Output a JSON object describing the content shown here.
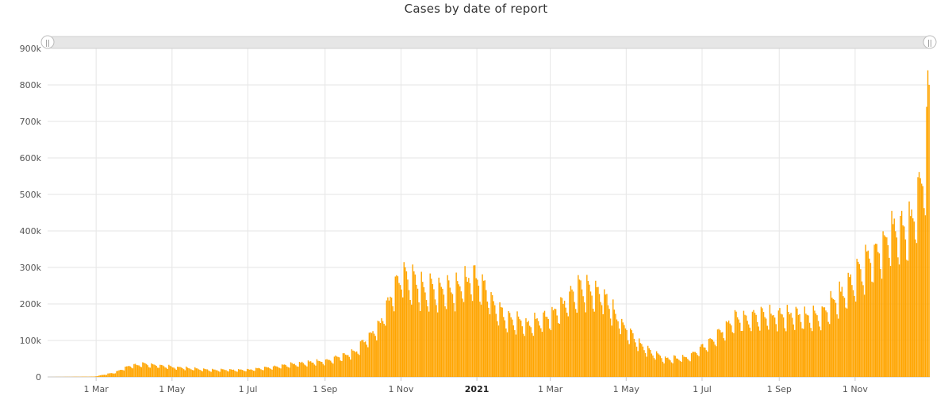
{
  "chart_data": {
    "type": "bar",
    "title": "Cases by date of report",
    "xlabel": "",
    "ylabel": "",
    "ylim": [
      0,
      900000
    ],
    "y_ticks": [
      {
        "value": 0,
        "label": "0"
      },
      {
        "value": 100000,
        "label": "100k"
      },
      {
        "value": 200000,
        "label": "200k"
      },
      {
        "value": 300000,
        "label": "300k"
      },
      {
        "value": 400000,
        "label": "400k"
      },
      {
        "value": 500000,
        "label": "500k"
      },
      {
        "value": 600000,
        "label": "600k"
      },
      {
        "value": 700000,
        "label": "700k"
      },
      {
        "value": 800000,
        "label": "800k"
      },
      {
        "value": 900000,
        "label": "900k"
      }
    ],
    "x_ticks": [
      {
        "date": "2020-03-01",
        "label": "1 Mar",
        "bold": false
      },
      {
        "date": "2020-05-01",
        "label": "1 May",
        "bold": false
      },
      {
        "date": "2020-07-01",
        "label": "1 Jul",
        "bold": false
      },
      {
        "date": "2020-09-01",
        "label": "1 Sep",
        "bold": false
      },
      {
        "date": "2020-11-01",
        "label": "1 Nov",
        "bold": false
      },
      {
        "date": "2021-01-01",
        "label": "2021",
        "bold": true
      },
      {
        "date": "2021-03-01",
        "label": "1 Mar",
        "bold": false
      },
      {
        "date": "2021-05-01",
        "label": "1 May",
        "bold": false
      },
      {
        "date": "2021-07-01",
        "label": "1 Jul",
        "bold": false
      },
      {
        "date": "2021-09-01",
        "label": "1 Sep",
        "bold": false
      },
      {
        "date": "2021-11-01",
        "label": "1 Nov",
        "bold": false
      }
    ],
    "x_range": [
      "2020-01-22",
      "2021-12-30"
    ],
    "series_color": "#FFA500",
    "grid": true,
    "series": [
      {
        "name": "Cases",
        "description": "Daily reported cases, approximated as a 7-day-periodic trend read off the chart",
        "trend_points": [
          {
            "date": "2020-01-22",
            "value": 0
          },
          {
            "date": "2020-02-28",
            "value": 1000
          },
          {
            "date": "2020-03-15",
            "value": 12000
          },
          {
            "date": "2020-03-28",
            "value": 32000
          },
          {
            "date": "2020-04-10",
            "value": 36000
          },
          {
            "date": "2020-05-01",
            "value": 28000
          },
          {
            "date": "2020-06-01",
            "value": 20000
          },
          {
            "date": "2020-07-01",
            "value": 20000
          },
          {
            "date": "2020-07-20",
            "value": 27000
          },
          {
            "date": "2020-08-10",
            "value": 38000
          },
          {
            "date": "2020-09-01",
            "value": 45000
          },
          {
            "date": "2020-09-25",
            "value": 72000
          },
          {
            "date": "2020-10-15",
            "value": 150000
          },
          {
            "date": "2020-10-25",
            "value": 240000
          },
          {
            "date": "2020-11-01",
            "value": 290000
          },
          {
            "date": "2020-11-20",
            "value": 245000
          },
          {
            "date": "2020-12-10",
            "value": 250000
          },
          {
            "date": "2021-01-01",
            "value": 280000
          },
          {
            "date": "2021-01-20",
            "value": 180000
          },
          {
            "date": "2021-02-10",
            "value": 145000
          },
          {
            "date": "2021-03-01",
            "value": 175000
          },
          {
            "date": "2021-03-25",
            "value": 250000
          },
          {
            "date": "2021-04-10",
            "value": 240000
          },
          {
            "date": "2021-04-25",
            "value": 160000
          },
          {
            "date": "2021-05-15",
            "value": 80000
          },
          {
            "date": "2021-06-01",
            "value": 50000
          },
          {
            "date": "2021-06-20",
            "value": 55000
          },
          {
            "date": "2021-07-05",
            "value": 95000
          },
          {
            "date": "2021-07-25",
            "value": 160000
          },
          {
            "date": "2021-08-15",
            "value": 170000
          },
          {
            "date": "2021-09-10",
            "value": 175000
          },
          {
            "date": "2021-10-01",
            "value": 170000
          },
          {
            "date": "2021-10-20",
            "value": 230000
          },
          {
            "date": "2021-11-10",
            "value": 320000
          },
          {
            "date": "2021-12-01",
            "value": 410000
          },
          {
            "date": "2021-12-15",
            "value": 420000
          },
          {
            "date": "2021-12-22",
            "value": 530000
          },
          {
            "date": "2021-12-30",
            "value": 600000
          }
        ],
        "final_spikes": [
          {
            "date": "2021-12-28",
            "value": 740000
          },
          {
            "date": "2021-12-29",
            "value": 840000
          },
          {
            "date": "2021-12-30",
            "value": 800000
          }
        ]
      }
    ]
  },
  "navigator": {
    "left_handle_glyph": "||",
    "right_handle_glyph": "||"
  }
}
